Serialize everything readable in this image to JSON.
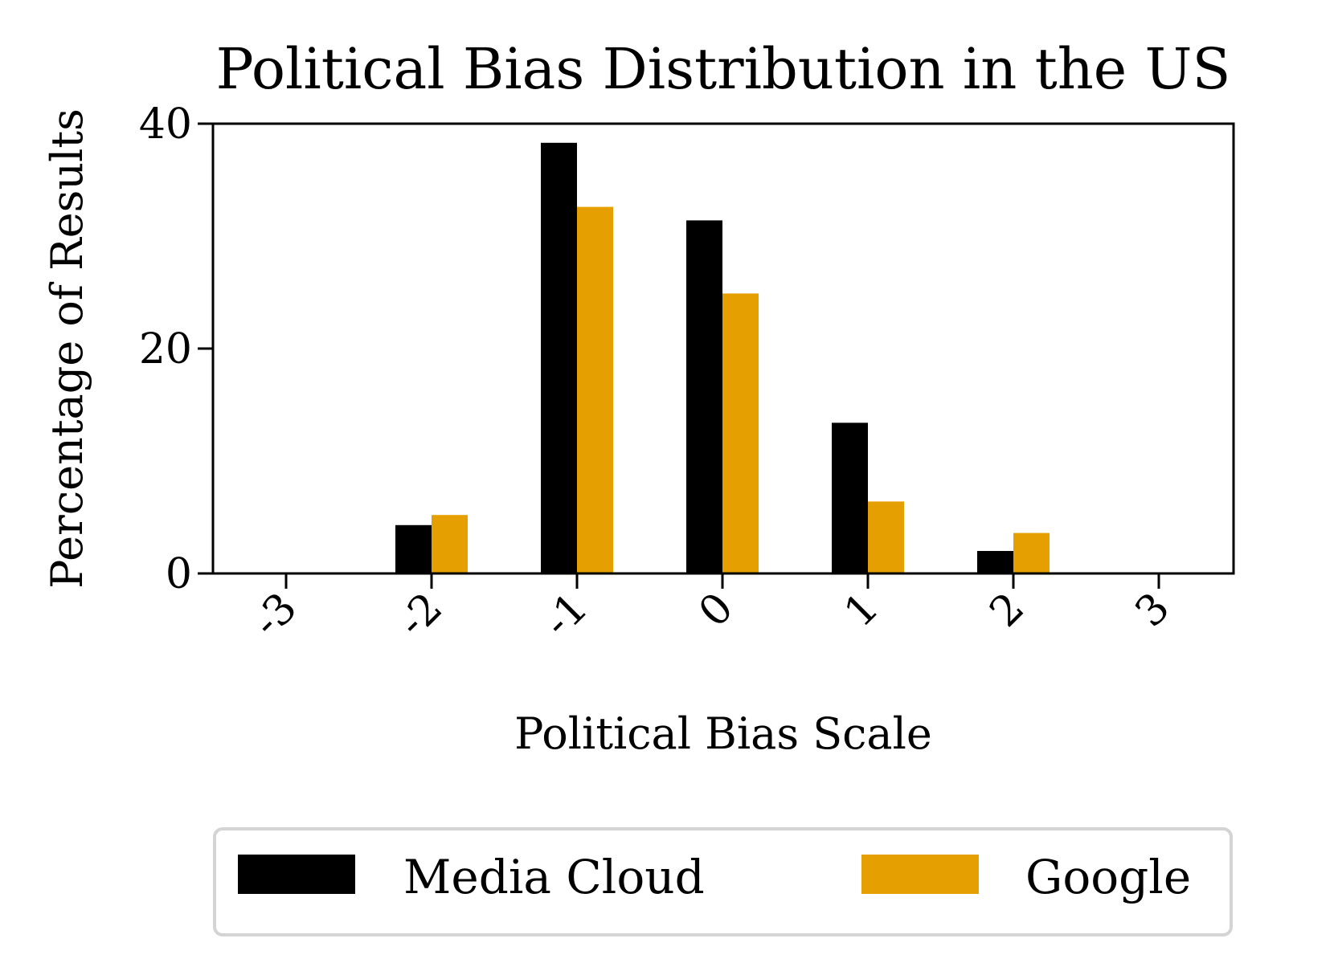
{
  "chart_data": {
    "type": "bar",
    "title": "Political Bias Distribution in the US",
    "xlabel": "Political Bias Scale",
    "ylabel": "Percentage of Results",
    "categories": [
      "-3",
      "-2",
      "-1",
      "0",
      "1",
      "2",
      "3"
    ],
    "series": [
      {
        "name": "Media Cloud",
        "color": "#000000",
        "values": [
          0,
          4.3,
          38.3,
          31.4,
          13.4,
          2.0,
          0
        ]
      },
      {
        "name": "Google",
        "color": "#E69F00",
        "values": [
          0,
          5.2,
          32.6,
          24.9,
          6.4,
          3.6,
          0
        ]
      }
    ],
    "ylim": [
      0,
      40
    ],
    "yticks": [
      "0",
      "20",
      "40"
    ],
    "grid": false,
    "legend_position": "bottom-center, below plot"
  }
}
